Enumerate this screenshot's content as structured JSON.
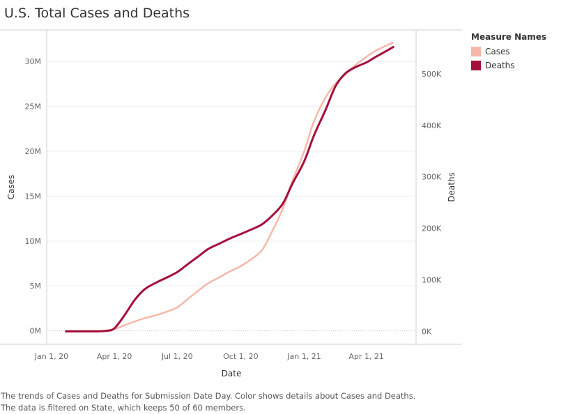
{
  "title": "U.S. Total Cases and Deaths",
  "caption": [
    "The trends of Cases and Deaths for Submission Date Day.  Color shows details about Cases and Deaths.",
    "The data is filtered on State, which keeps 50 of 60 members."
  ],
  "legend": {
    "title": "Measure Names",
    "items": [
      {
        "label": "Cases",
        "color": "#f5b8a8"
      },
      {
        "label": "Deaths",
        "color": "#a50f3b"
      }
    ]
  },
  "chart_data": {
    "type": "line",
    "xlabel": "Date",
    "ylabel_left": "Cases",
    "ylabel_right": "Deaths",
    "x_ticks": [
      "Jan 1, 20",
      "Apr 1, 20",
      "Jul 1, 20",
      "Oct 1, 20",
      "Jan 1, 21",
      "Apr 1, 21"
    ],
    "x_tick_dates": [
      "2020-01-01",
      "2020-04-01",
      "2020-07-01",
      "2020-10-01",
      "2021-01-01",
      "2021-04-01"
    ],
    "y_left_ticks": [
      "0M",
      "5M",
      "10M",
      "15M",
      "20M",
      "25M",
      "30M"
    ],
    "y_left_values": [
      0,
      5000000,
      10000000,
      15000000,
      20000000,
      25000000,
      30000000
    ],
    "y_left_lim": [
      -1500000,
      33500000
    ],
    "y_right_ticks": [
      "0K",
      "100K",
      "200K",
      "300K",
      "400K",
      "500K"
    ],
    "y_right_values": [
      0,
      100000,
      200000,
      300000,
      400000,
      500000
    ],
    "y_right_lim": [
      -25000,
      585000
    ],
    "grid": true,
    "legend_position": "right",
    "series": [
      {
        "name": "Cases",
        "axis": "left",
        "color": "#f5b8a8",
        "points": [
          [
            "2020-01-22",
            0
          ],
          [
            "2020-03-01",
            0
          ],
          [
            "2020-03-15",
            10000
          ],
          [
            "2020-04-01",
            200000
          ],
          [
            "2020-04-15",
            600000
          ],
          [
            "2020-05-01",
            1050000
          ],
          [
            "2020-05-15",
            1400000
          ],
          [
            "2020-06-01",
            1750000
          ],
          [
            "2020-06-15",
            2100000
          ],
          [
            "2020-07-01",
            2600000
          ],
          [
            "2020-07-15",
            3450000
          ],
          [
            "2020-08-01",
            4500000
          ],
          [
            "2020-08-15",
            5300000
          ],
          [
            "2020-09-01",
            6000000
          ],
          [
            "2020-09-15",
            6600000
          ],
          [
            "2020-10-01",
            7200000
          ],
          [
            "2020-10-15",
            7900000
          ],
          [
            "2020-11-01",
            9000000
          ],
          [
            "2020-11-15",
            11000000
          ],
          [
            "2020-12-01",
            13600000
          ],
          [
            "2020-12-15",
            16700000
          ],
          [
            "2021-01-01",
            20000000
          ],
          [
            "2021-01-15",
            23300000
          ],
          [
            "2021-02-01",
            26000000
          ],
          [
            "2021-02-15",
            27500000
          ],
          [
            "2021-03-01",
            28500000
          ],
          [
            "2021-03-15",
            29500000
          ],
          [
            "2021-04-01",
            30500000
          ],
          [
            "2021-04-15",
            31200000
          ],
          [
            "2021-05-01",
            31800000
          ],
          [
            "2021-05-10",
            32100000
          ]
        ]
      },
      {
        "name": "Deaths",
        "axis": "right",
        "color": "#a50f3b",
        "points": [
          [
            "2020-01-22",
            0
          ],
          [
            "2020-03-01",
            0
          ],
          [
            "2020-03-20",
            1000
          ],
          [
            "2020-04-01",
            6000
          ],
          [
            "2020-04-15",
            30000
          ],
          [
            "2020-05-01",
            62000
          ],
          [
            "2020-05-15",
            82000
          ],
          [
            "2020-06-01",
            95000
          ],
          [
            "2020-06-15",
            104000
          ],
          [
            "2020-07-01",
            115000
          ],
          [
            "2020-07-15",
            129000
          ],
          [
            "2020-08-01",
            146000
          ],
          [
            "2020-08-15",
            160000
          ],
          [
            "2020-09-01",
            171000
          ],
          [
            "2020-09-15",
            180000
          ],
          [
            "2020-10-01",
            189000
          ],
          [
            "2020-10-15",
            197000
          ],
          [
            "2020-11-01",
            208000
          ],
          [
            "2020-11-15",
            224000
          ],
          [
            "2020-12-01",
            248000
          ],
          [
            "2020-12-15",
            287000
          ],
          [
            "2021-01-01",
            330000
          ],
          [
            "2021-01-15",
            380000
          ],
          [
            "2021-02-01",
            430000
          ],
          [
            "2021-02-15",
            475000
          ],
          [
            "2021-03-01",
            500000
          ],
          [
            "2021-03-15",
            512000
          ],
          [
            "2021-04-01",
            522000
          ],
          [
            "2021-04-15",
            533000
          ],
          [
            "2021-05-01",
            545000
          ],
          [
            "2021-05-10",
            552000
          ]
        ]
      }
    ]
  }
}
